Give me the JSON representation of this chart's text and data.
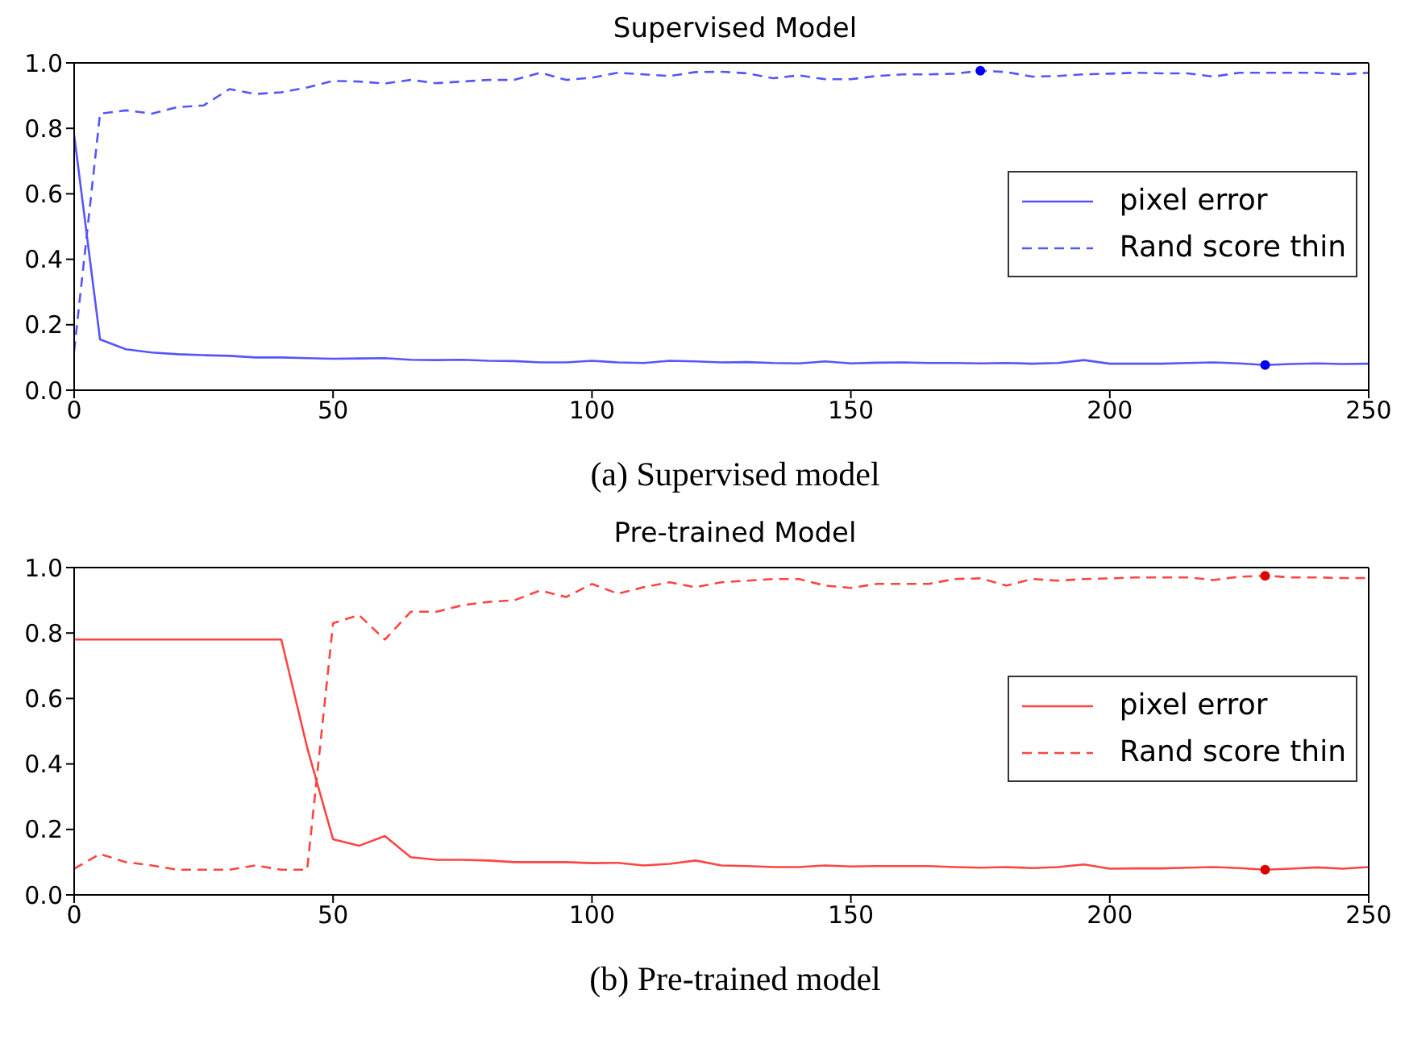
{
  "chart_data": [
    {
      "type": "line",
      "title": "Supervised Model",
      "annotations": [
        "(a) Supervised model"
      ],
      "xlim": [
        0,
        250
      ],
      "xticks": [
        0,
        50,
        100,
        150,
        200,
        250
      ],
      "ylim": [
        0,
        1
      ],
      "yticks": [
        {
          "value": 0,
          "label": "0.0"
        },
        {
          "value": 0.2,
          "label": "0.2"
        },
        {
          "value": 0.4,
          "label": "0.4"
        },
        {
          "value": 0.6,
          "label": "0.6"
        },
        {
          "value": 0.8,
          "label": "0.8"
        },
        {
          "value": 1,
          "label": "1.0"
        }
      ],
      "legend": "right",
      "grid": false,
      "x": [
        0,
        5,
        10,
        15,
        20,
        25,
        30,
        35,
        40,
        45,
        50,
        55,
        60,
        65,
        70,
        75,
        80,
        85,
        90,
        95,
        100,
        105,
        110,
        115,
        120,
        125,
        130,
        135,
        140,
        145,
        150,
        155,
        160,
        165,
        170,
        175,
        180,
        185,
        190,
        195,
        200,
        205,
        210,
        215,
        220,
        225,
        230,
        235,
        240,
        245,
        250
      ],
      "series": [
        {
          "name": "pixel error",
          "color": "#5555ff",
          "line_style": "solid",
          "values": [
            0.78,
            0.155,
            0.125,
            0.115,
            0.11,
            0.107,
            0.105,
            0.1,
            0.1,
            0.098,
            0.096,
            0.097,
            0.098,
            0.093,
            0.092,
            0.093,
            0.09,
            0.089,
            0.085,
            0.085,
            0.09,
            0.085,
            0.083,
            0.09,
            0.088,
            0.085,
            0.086,
            0.083,
            0.082,
            0.088,
            0.082,
            0.084,
            0.085,
            0.083,
            0.083,
            0.082,
            0.083,
            0.081,
            0.083,
            0.092,
            0.081,
            0.081,
            0.081,
            0.083,
            0.085,
            0.082,
            0.077,
            0.08,
            0.082,
            0.08,
            0.081
          ]
        },
        {
          "name": "Rand score thin",
          "color": "#5555ff",
          "line_style": "dashed",
          "values": [
            0.12,
            0.845,
            0.855,
            0.845,
            0.865,
            0.87,
            0.92,
            0.905,
            0.91,
            0.925,
            0.945,
            0.943,
            0.937,
            0.948,
            0.938,
            0.943,
            0.948,
            0.948,
            0.97,
            0.948,
            0.955,
            0.97,
            0.965,
            0.96,
            0.972,
            0.973,
            0.968,
            0.953,
            0.962,
            0.95,
            0.95,
            0.96,
            0.965,
            0.965,
            0.967,
            0.976,
            0.972,
            0.958,
            0.96,
            0.965,
            0.967,
            0.97,
            0.968,
            0.968,
            0.958,
            0.97,
            0.97,
            0.97,
            0.97,
            0.965,
            0.97
          ]
        },
        {
          "type": "scatter",
          "color": "#0000ee",
          "marker": "circle",
          "values": [
            null,
            null,
            null,
            null,
            null,
            null,
            null,
            null,
            null,
            null,
            null,
            null,
            null,
            null,
            null,
            null,
            null,
            null,
            null,
            null,
            null,
            null,
            null,
            null,
            null,
            null,
            null,
            null,
            null,
            null,
            null,
            null,
            null,
            null,
            null,
            0.976,
            null,
            null,
            null,
            null,
            null,
            null,
            null,
            null,
            null,
            null,
            0.077,
            null,
            null,
            null,
            null
          ]
        }
      ]
    },
    {
      "type": "line",
      "title": "Pre-trained Model",
      "annotations": [
        "(b) Pre-trained model"
      ],
      "xlim": [
        0,
        250
      ],
      "xticks": [
        0,
        50,
        100,
        150,
        200,
        250
      ],
      "ylim": [
        0,
        1
      ],
      "yticks": [
        {
          "value": 0,
          "label": "0.0"
        },
        {
          "value": 0.2,
          "label": "0.2"
        },
        {
          "value": 0.4,
          "label": "0.4"
        },
        {
          "value": 0.6,
          "label": "0.6"
        },
        {
          "value": 0.8,
          "label": "0.8"
        },
        {
          "value": 1,
          "label": "1.0"
        }
      ],
      "legend": "right",
      "grid": false,
      "x": [
        0,
        5,
        10,
        15,
        20,
        25,
        30,
        35,
        40,
        45,
        50,
        55,
        60,
        65,
        70,
        75,
        80,
        85,
        90,
        95,
        100,
        105,
        110,
        115,
        120,
        125,
        130,
        135,
        140,
        145,
        150,
        155,
        160,
        165,
        170,
        175,
        180,
        185,
        190,
        195,
        200,
        205,
        210,
        215,
        220,
        225,
        230,
        235,
        240,
        245,
        250
      ],
      "series": [
        {
          "name": "pixel error",
          "color": "#ff4444",
          "line_style": "solid",
          "values": [
            0.78,
            0.78,
            0.78,
            0.78,
            0.78,
            0.78,
            0.78,
            0.78,
            0.78,
            0.45,
            0.17,
            0.15,
            0.18,
            0.115,
            0.107,
            0.107,
            0.105,
            0.1,
            0.1,
            0.1,
            0.097,
            0.098,
            0.09,
            0.095,
            0.105,
            0.09,
            0.088,
            0.085,
            0.085,
            0.09,
            0.087,
            0.088,
            0.088,
            0.088,
            0.085,
            0.083,
            0.085,
            0.082,
            0.085,
            0.093,
            0.08,
            0.081,
            0.081,
            0.083,
            0.085,
            0.082,
            0.077,
            0.08,
            0.084,
            0.08,
            0.085
          ]
        },
        {
          "name": "Rand score thin",
          "color": "#ff4444",
          "line_style": "dashed",
          "values": [
            0.08,
            0.125,
            0.1,
            0.09,
            0.077,
            0.077,
            0.077,
            0.09,
            0.077,
            0.077,
            0.83,
            0.855,
            0.78,
            0.865,
            0.865,
            0.885,
            0.895,
            0.9,
            0.93,
            0.91,
            0.95,
            0.92,
            0.94,
            0.955,
            0.94,
            0.955,
            0.96,
            0.965,
            0.965,
            0.945,
            0.938,
            0.95,
            0.95,
            0.95,
            0.965,
            0.967,
            0.945,
            0.965,
            0.96,
            0.965,
            0.967,
            0.97,
            0.97,
            0.97,
            0.962,
            0.972,
            0.975,
            0.97,
            0.97,
            0.968,
            0.968
          ]
        },
        {
          "type": "scatter",
          "color": "#dd0000",
          "marker": "circle",
          "values": [
            null,
            null,
            null,
            null,
            null,
            null,
            null,
            null,
            null,
            null,
            null,
            null,
            null,
            null,
            null,
            null,
            null,
            null,
            null,
            null,
            null,
            null,
            null,
            null,
            null,
            null,
            null,
            null,
            null,
            null,
            null,
            null,
            null,
            null,
            null,
            null,
            null,
            null,
            null,
            null,
            null,
            null,
            null,
            null,
            null,
            null,
            0.975,
            null,
            null,
            null,
            null
          ]
        },
        {
          "type": "scatter",
          "color": "#dd0000",
          "marker": "circle",
          "values": [
            null,
            null,
            null,
            null,
            null,
            null,
            null,
            null,
            null,
            null,
            null,
            null,
            null,
            null,
            null,
            null,
            null,
            null,
            null,
            null,
            null,
            null,
            null,
            null,
            null,
            null,
            null,
            null,
            null,
            null,
            null,
            null,
            null,
            null,
            null,
            null,
            null,
            null,
            null,
            null,
            null,
            null,
            null,
            null,
            null,
            null,
            0.077,
            null,
            null,
            null,
            null
          ]
        }
      ]
    }
  ]
}
